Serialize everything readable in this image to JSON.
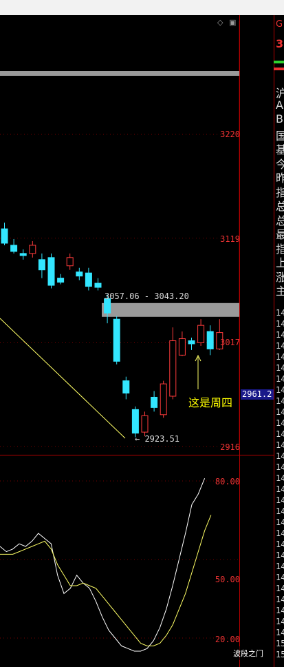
{
  "window": {
    "controls": [
      "◇",
      "▣"
    ]
  },
  "price_axis": {
    "ticks": [
      "3220",
      "3119",
      "3017",
      "2916"
    ],
    "current_price": "2961.2"
  },
  "indicator_axis": {
    "ticks": [
      "80.00",
      "50.00",
      "20.00"
    ]
  },
  "annotations": {
    "gap_range": "3057.06 - 3043.20",
    "low_point": "← 2923.51",
    "note": "这是周四"
  },
  "right_panel": {
    "top_letters": [
      "G",
      "3"
    ],
    "labels": [
      "沪",
      "A",
      "B",
      "国",
      "基",
      "今",
      "昨",
      "指",
      "总",
      "总",
      "最",
      "指",
      "上",
      "涨",
      "主"
    ],
    "numbers": [
      "14",
      "14",
      "14",
      "14",
      "14",
      "14",
      "14",
      "14",
      "14",
      "14",
      "14",
      "14",
      "14",
      "14",
      "14",
      "14",
      "14",
      "14",
      "14",
      "14",
      "14",
      "14",
      "14",
      "14",
      "14",
      "14",
      "14",
      "14",
      "14",
      "14",
      "15",
      "15"
    ]
  },
  "watermark": "波段之门",
  "colors": {
    "up_candle": "#ff3b3b",
    "down_candle": "#33e6ff",
    "frame": "#b40000",
    "gap_zone": "#9a9a9a",
    "line_white": "#ffffff",
    "line_yellow": "#ffff66"
  },
  "chart_data": [
    {
      "type": "candlestick",
      "title": "",
      "ylim": [
        2900,
        3260
      ],
      "y_ticks": [
        3220,
        3119,
        3017,
        2916
      ],
      "candles": [
        {
          "o": 3128,
          "h": 3134,
          "l": 3112,
          "c": 3114
        },
        {
          "o": 3112,
          "h": 3118,
          "l": 3104,
          "c": 3106
        },
        {
          "o": 3104,
          "h": 3108,
          "l": 3098,
          "c": 3102
        },
        {
          "o": 3104,
          "h": 3116,
          "l": 3100,
          "c": 3112
        },
        {
          "o": 3098,
          "h": 3104,
          "l": 3080,
          "c": 3088
        },
        {
          "o": 3100,
          "h": 3104,
          "l": 3070,
          "c": 3073
        },
        {
          "o": 3080,
          "h": 3084,
          "l": 3074,
          "c": 3076
        },
        {
          "o": 3092,
          "h": 3104,
          "l": 3088,
          "c": 3100
        },
        {
          "o": 3086,
          "h": 3090,
          "l": 3078,
          "c": 3082
        },
        {
          "o": 3085,
          "h": 3090,
          "l": 3068,
          "c": 3072
        },
        {
          "o": 3075,
          "h": 3080,
          "l": 3068,
          "c": 3071
        },
        {
          "o": 3060,
          "h": 3064,
          "l": 3036,
          "c": 3046
        },
        {
          "o": 3040,
          "h": 3043,
          "l": 2996,
          "c": 2999
        },
        {
          "o": 2980,
          "h": 2984,
          "l": 2962,
          "c": 2968
        },
        {
          "o": 2952,
          "h": 2955,
          "l": 2925,
          "c": 2929
        },
        {
          "o": 2930,
          "h": 2950,
          "l": 2926,
          "c": 2946
        },
        {
          "o": 2964,
          "h": 2970,
          "l": 2950,
          "c": 2954
        },
        {
          "o": 2947,
          "h": 2980,
          "l": 2944,
          "c": 2977
        },
        {
          "o": 2965,
          "h": 3032,
          "l": 2962,
          "c": 3019
        },
        {
          "o": 3005,
          "h": 3028,
          "l": 3004,
          "c": 3021
        },
        {
          "o": 3019,
          "h": 3022,
          "l": 3010,
          "c": 3016
        },
        {
          "o": 3017,
          "h": 3040,
          "l": 3014,
          "c": 3034
        },
        {
          "o": 3028,
          "h": 3034,
          "l": 3005,
          "c": 3011
        },
        {
          "o": 3011,
          "h": 3040,
          "l": 3010,
          "c": 3027
        }
      ],
      "gap_zone": [
        3043.2,
        3057.06
      ],
      "trendline": {
        "from": 3050,
        "to": 2923.51
      }
    },
    {
      "type": "line",
      "title": "",
      "ylim": [
        13,
        95
      ],
      "y_ticks": [
        80,
        50,
        20
      ],
      "series": [
        {
          "values": [
            55,
            53,
            54,
            56,
            55,
            57,
            60,
            58,
            56,
            44,
            37,
            39,
            44,
            41,
            39,
            34,
            28,
            23,
            20,
            17,
            16,
            15,
            15,
            16,
            19,
            24,
            31,
            40,
            50,
            60,
            71,
            75,
            81
          ]
        },
        {
          "values": [
            52,
            52,
            52,
            53,
            54,
            55,
            56,
            57,
            54,
            48,
            44,
            40,
            40,
            41,
            40,
            39,
            36,
            33,
            30,
            27,
            24,
            21,
            18,
            17,
            17,
            18,
            21,
            25,
            31,
            37,
            45,
            53,
            61,
            67
          ]
        }
      ]
    }
  ]
}
